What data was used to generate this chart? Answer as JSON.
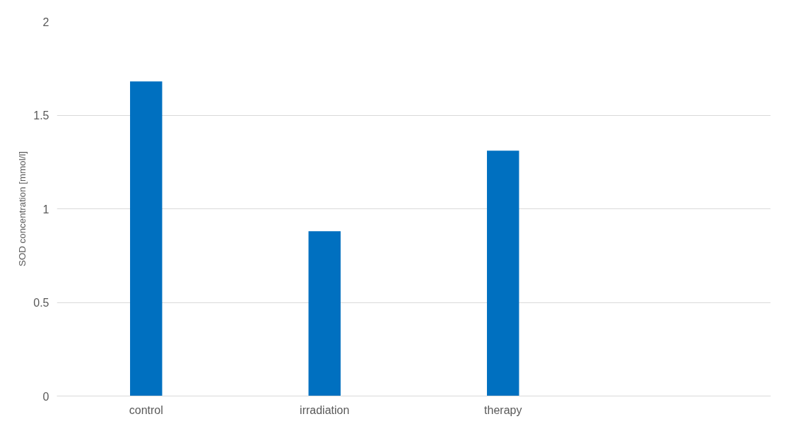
{
  "chart_data": {
    "type": "bar",
    "ylabel": "SOD concentration [mmol/l]",
    "categories": [
      "control",
      "irradiation",
      "therapy",
      null
    ],
    "series": [
      {
        "color": "#0070c0",
        "values": [
          1.68,
          0.88,
          1.31,
          null
        ]
      }
    ],
    "ylim": [
      0,
      2
    ],
    "yticks": [
      0,
      0.5,
      1,
      1.5,
      2
    ],
    "grid": "y"
  }
}
